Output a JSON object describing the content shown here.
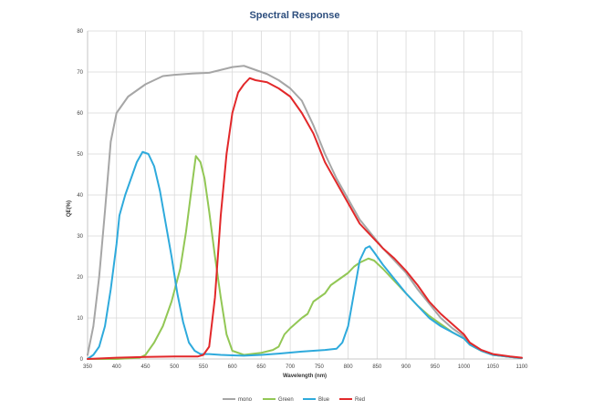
{
  "chart_data": {
    "type": "line",
    "title": "Spectral Response",
    "xlabel": "Wavelength (nm)",
    "ylabel": "QE(%)",
    "xlim": [
      350,
      1100
    ],
    "ylim": [
      0,
      80
    ],
    "x_ticks": [
      350,
      400,
      450,
      500,
      550,
      600,
      650,
      700,
      750,
      800,
      850,
      900,
      950,
      1000,
      1050,
      1100
    ],
    "y_ticks": [
      0,
      10,
      20,
      30,
      40,
      50,
      60,
      70,
      80
    ],
    "grid": true,
    "legend_position": "bottom",
    "series": [
      {
        "name": "mono",
        "color": "#a6a6a6",
        "points": [
          [
            350,
            1
          ],
          [
            360,
            8
          ],
          [
            370,
            20
          ],
          [
            380,
            36
          ],
          [
            390,
            53
          ],
          [
            400,
            60
          ],
          [
            420,
            64
          ],
          [
            450,
            67
          ],
          [
            480,
            69
          ],
          [
            500,
            69.3
          ],
          [
            530,
            69.6
          ],
          [
            560,
            69.8
          ],
          [
            580,
            70.5
          ],
          [
            600,
            71.2
          ],
          [
            620,
            71.5
          ],
          [
            640,
            70.5
          ],
          [
            660,
            69.5
          ],
          [
            680,
            68
          ],
          [
            700,
            66
          ],
          [
            720,
            63
          ],
          [
            740,
            57
          ],
          [
            760,
            50
          ],
          [
            780,
            44
          ],
          [
            800,
            39
          ],
          [
            820,
            34
          ],
          [
            840,
            30.5
          ],
          [
            860,
            27
          ],
          [
            880,
            24
          ],
          [
            900,
            21
          ],
          [
            920,
            17
          ],
          [
            940,
            13.5
          ],
          [
            960,
            10
          ],
          [
            980,
            7.5
          ],
          [
            1000,
            5.5
          ],
          [
            1010,
            3.5
          ],
          [
            1030,
            2
          ],
          [
            1050,
            1
          ],
          [
            1080,
            0.5
          ],
          [
            1100,
            0.2
          ]
        ]
      },
      {
        "name": "Green",
        "color": "#92c755",
        "points": [
          [
            350,
            0
          ],
          [
            400,
            0
          ],
          [
            440,
            0.3
          ],
          [
            450,
            1
          ],
          [
            465,
            4
          ],
          [
            480,
            8
          ],
          [
            495,
            14
          ],
          [
            510,
            22
          ],
          [
            520,
            31
          ],
          [
            530,
            42
          ],
          [
            537,
            49.5
          ],
          [
            545,
            48
          ],
          [
            552,
            44
          ],
          [
            560,
            36
          ],
          [
            570,
            25
          ],
          [
            580,
            15
          ],
          [
            590,
            6
          ],
          [
            600,
            2
          ],
          [
            620,
            1
          ],
          [
            650,
            1.5
          ],
          [
            670,
            2.2
          ],
          [
            680,
            3
          ],
          [
            690,
            6
          ],
          [
            700,
            7.5
          ],
          [
            720,
            10
          ],
          [
            730,
            11
          ],
          [
            740,
            14
          ],
          [
            760,
            16
          ],
          [
            770,
            18
          ],
          [
            780,
            19
          ],
          [
            790,
            20
          ],
          [
            800,
            21
          ],
          [
            810,
            22.5
          ],
          [
            820,
            23.5
          ],
          [
            835,
            24.5
          ],
          [
            845,
            24
          ],
          [
            860,
            22
          ],
          [
            880,
            19
          ],
          [
            900,
            16
          ],
          [
            920,
            13
          ],
          [
            940,
            10.5
          ],
          [
            960,
            8.5
          ],
          [
            980,
            6.5
          ],
          [
            1000,
            5
          ],
          [
            1010,
            3.5
          ],
          [
            1030,
            2
          ],
          [
            1050,
            1
          ],
          [
            1080,
            0.5
          ],
          [
            1100,
            0.2
          ]
        ]
      },
      {
        "name": "Blue",
        "color": "#2eaadc",
        "points": [
          [
            350,
            0
          ],
          [
            360,
            1
          ],
          [
            370,
            3
          ],
          [
            380,
            8
          ],
          [
            390,
            17
          ],
          [
            400,
            28
          ],
          [
            405,
            35
          ],
          [
            415,
            40
          ],
          [
            425,
            44
          ],
          [
            435,
            48
          ],
          [
            445,
            50.5
          ],
          [
            455,
            50
          ],
          [
            465,
            47
          ],
          [
            475,
            41
          ],
          [
            485,
            33
          ],
          [
            495,
            25
          ],
          [
            505,
            16
          ],
          [
            515,
            9
          ],
          [
            525,
            4
          ],
          [
            535,
            2
          ],
          [
            545,
            1.2
          ],
          [
            560,
            1.2
          ],
          [
            580,
            1
          ],
          [
            600,
            0.9
          ],
          [
            620,
            0.8
          ],
          [
            650,
            1
          ],
          [
            680,
            1.3
          ],
          [
            720,
            1.8
          ],
          [
            760,
            2.2
          ],
          [
            780,
            2.5
          ],
          [
            790,
            4
          ],
          [
            800,
            8
          ],
          [
            810,
            16
          ],
          [
            820,
            24
          ],
          [
            830,
            27
          ],
          [
            837,
            27.5
          ],
          [
            845,
            26
          ],
          [
            860,
            23
          ],
          [
            880,
            19.5
          ],
          [
            900,
            16
          ],
          [
            920,
            13
          ],
          [
            940,
            10
          ],
          [
            960,
            8
          ],
          [
            980,
            6.5
          ],
          [
            1000,
            5
          ],
          [
            1010,
            3.5
          ],
          [
            1030,
            2
          ],
          [
            1050,
            1
          ],
          [
            1080,
            0.5
          ],
          [
            1100,
            0.2
          ]
        ]
      },
      {
        "name": "Red",
        "color": "#e2282a",
        "points": [
          [
            350,
            0
          ],
          [
            400,
            0.3
          ],
          [
            450,
            0.5
          ],
          [
            500,
            0.6
          ],
          [
            540,
            0.6
          ],
          [
            550,
            1
          ],
          [
            560,
            3
          ],
          [
            570,
            15
          ],
          [
            580,
            35
          ],
          [
            590,
            50
          ],
          [
            600,
            60
          ],
          [
            610,
            65
          ],
          [
            620,
            67
          ],
          [
            630,
            68.5
          ],
          [
            640,
            68
          ],
          [
            660,
            67.5
          ],
          [
            680,
            66
          ],
          [
            700,
            64
          ],
          [
            720,
            60
          ],
          [
            740,
            55
          ],
          [
            760,
            48
          ],
          [
            780,
            43
          ],
          [
            800,
            38
          ],
          [
            820,
            33
          ],
          [
            840,
            30
          ],
          [
            860,
            27
          ],
          [
            880,
            24.5
          ],
          [
            900,
            21.5
          ],
          [
            920,
            18
          ],
          [
            940,
            14
          ],
          [
            960,
            11
          ],
          [
            980,
            8.5
          ],
          [
            1000,
            6
          ],
          [
            1010,
            4
          ],
          [
            1030,
            2.2
          ],
          [
            1050,
            1.2
          ],
          [
            1080,
            0.6
          ],
          [
            1100,
            0.3
          ]
        ]
      }
    ]
  }
}
